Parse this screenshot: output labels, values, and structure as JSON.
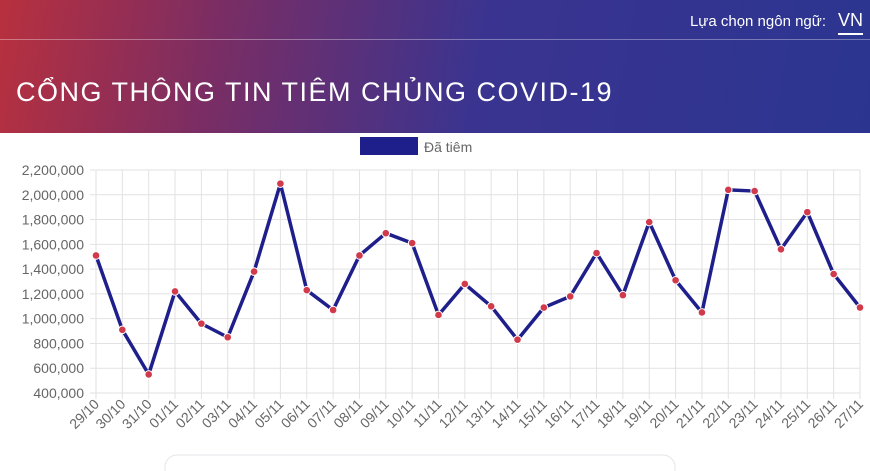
{
  "header": {
    "language_label": "Lựa chọn ngôn ngữ:",
    "language": "VN",
    "title": "CỔNG THÔNG TIN TIÊM CHỦNG COVID-19"
  },
  "chart_data": {
    "type": "line",
    "categories": [
      "29/10",
      "30/10",
      "31/10",
      "01/11",
      "02/11",
      "03/11",
      "04/11",
      "05/11",
      "06/11",
      "07/11",
      "08/11",
      "09/11",
      "10/11",
      "11/11",
      "12/11",
      "13/11",
      "14/11",
      "15/11",
      "16/11",
      "17/11",
      "18/11",
      "19/11",
      "20/11",
      "21/11",
      "22/11",
      "23/11",
      "24/11",
      "25/11",
      "26/11",
      "27/11"
    ],
    "series": [
      {
        "name": "Đã tiêm",
        "color": "#1f1f8c",
        "marker_color": "#d03a4a",
        "values": [
          1510000,
          910000,
          550000,
          1220000,
          960000,
          850000,
          1380000,
          2090000,
          1230000,
          1070000,
          1510000,
          1690000,
          1610000,
          1030000,
          1280000,
          1100000,
          830000,
          1090000,
          1180000,
          1530000,
          1190000,
          1780000,
          1310000,
          1050000,
          2040000,
          2030000,
          1560000,
          1860000,
          1360000,
          1090000
        ]
      }
    ],
    "ylim": [
      400000,
      2200000
    ],
    "yticks": [
      {
        "value": 400000,
        "label": "400,000"
      },
      {
        "value": 600000,
        "label": "600,000"
      },
      {
        "value": 800000,
        "label": "800,000"
      },
      {
        "value": 1000000,
        "label": "1,000,000"
      },
      {
        "value": 1200000,
        "label": "1,200,000"
      },
      {
        "value": 1400000,
        "label": "1,400,000"
      },
      {
        "value": 1600000,
        "label": "1,600,000"
      },
      {
        "value": 1800000,
        "label": "1,800,000"
      },
      {
        "value": 2000000,
        "label": "2,000,000"
      },
      {
        "value": 2200000,
        "label": "2,200,000"
      }
    ],
    "grid": true,
    "legend": "top"
  }
}
